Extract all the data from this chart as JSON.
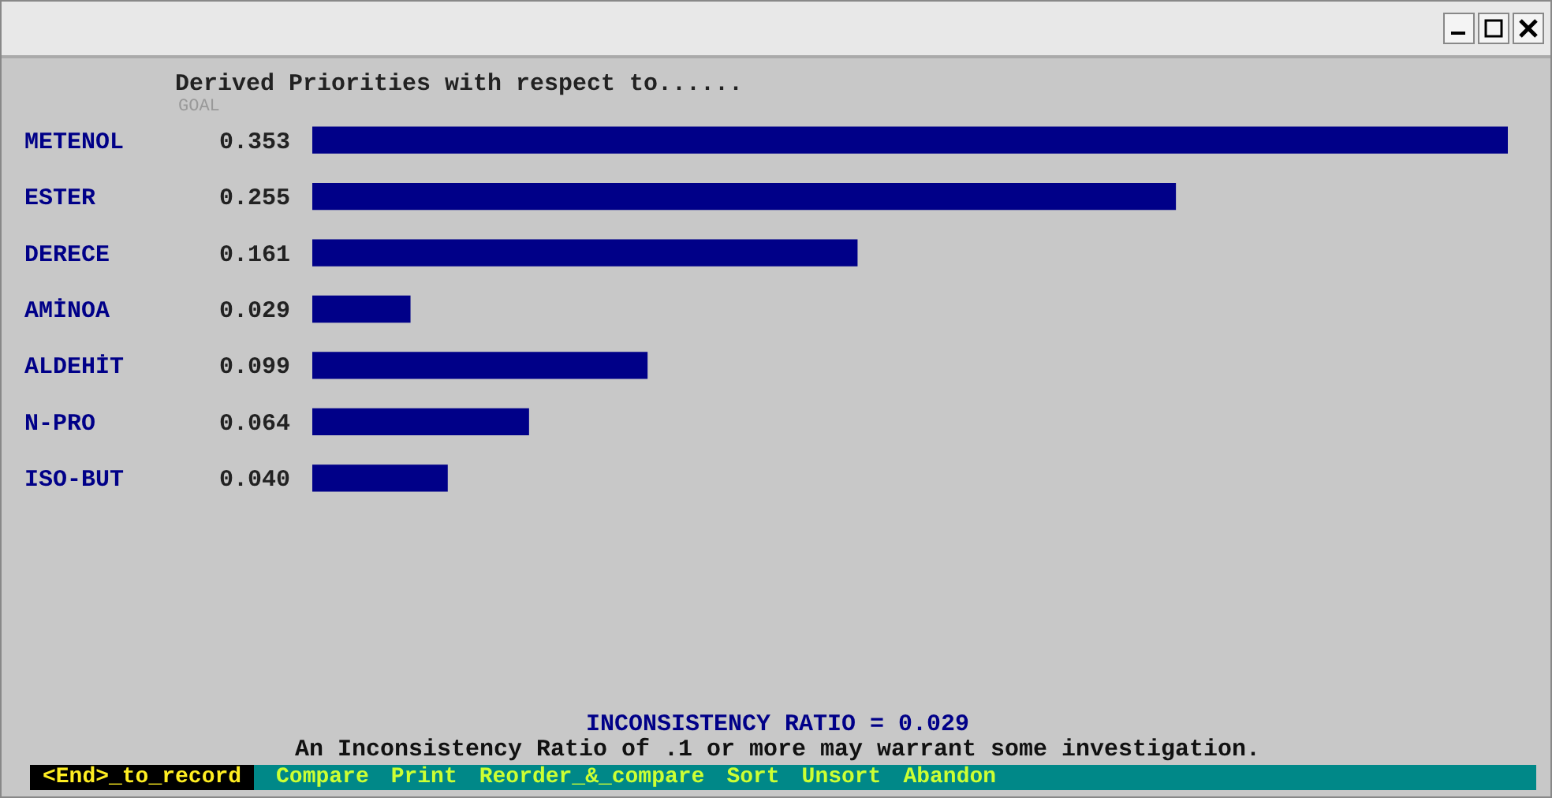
{
  "chart_data": {
    "type": "bar",
    "orientation": "horizontal",
    "title": "Derived Priorities with respect to......",
    "subtitle": "GOAL",
    "categories": [
      "METENOL",
      "ESTER",
      "DERECE",
      "AMİNOA",
      "ALDEHİT",
      "N-PRO",
      "ISO-BUT"
    ],
    "values": [
      0.353,
      0.255,
      0.161,
      0.029,
      0.099,
      0.064,
      0.04
    ],
    "value_labels": [
      "0.353",
      "0.255",
      "0.161",
      "0.029",
      "0.099",
      "0.064",
      "0.040"
    ],
    "color": "#000088",
    "annotations": [
      "INCONSISTENCY RATIO =  0.029",
      "An Inconsistency Ratio of .1 or more may warrant some investigation.",
      "<End>_to_record",
      "Compare",
      "Print",
      "Reorder_&_compare",
      "Sort",
      "Unsort",
      "Abandon"
    ]
  }
}
